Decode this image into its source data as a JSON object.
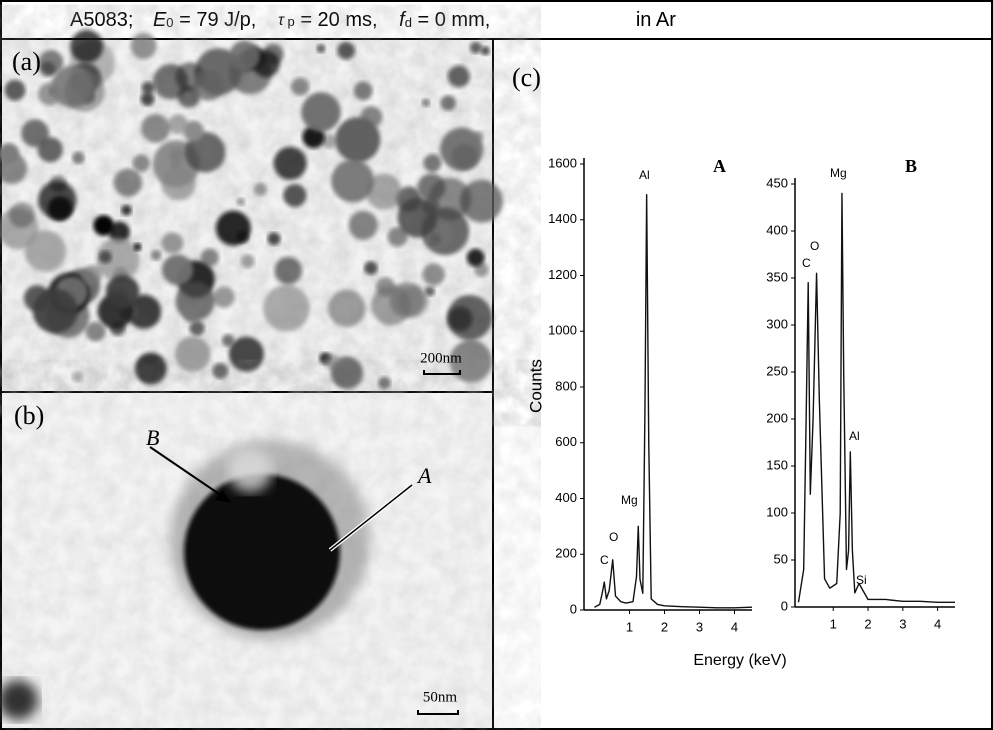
{
  "header": {
    "parts": [
      "A5083;",
      "E",
      "0",
      " = 79 J/p,",
      "τ",
      " p",
      " = 20 ms,",
      "f",
      "d",
      " = 0 mm,",
      "in Ar"
    ]
  },
  "panel_a": {
    "label": "(a)",
    "scale_bar": "200nm"
  },
  "panel_b": {
    "label": "(b)",
    "scale_bar": "50nm",
    "arrows": [
      "B",
      "A"
    ]
  },
  "panel_c": {
    "label": "(c)",
    "xlabel": "Energy (keV)",
    "peak_labels_a": [
      "C",
      "O",
      "Mg",
      "Al"
    ],
    "peak_labels_b": [
      "C",
      "O",
      "Mg",
      "Al",
      "Si"
    ]
  },
  "chart_data": [
    {
      "type": "line",
      "title": "A",
      "ylabel": "Counts",
      "color": "#111111",
      "x": [
        0,
        0.15,
        0.22,
        0.28,
        0.34,
        0.42,
        0.52,
        0.6,
        0.75,
        0.9,
        1.1,
        1.2,
        1.25,
        1.3,
        1.38,
        1.44,
        1.49,
        1.55,
        1.62,
        1.8,
        2.0,
        2.5,
        3.0,
        3.5,
        4.0,
        4.5
      ],
      "values": [
        10,
        20,
        60,
        100,
        40,
        70,
        180,
        50,
        30,
        25,
        30,
        120,
        300,
        110,
        60,
        700,
        1490,
        600,
        40,
        20,
        15,
        12,
        10,
        8,
        8,
        10
      ],
      "xlim": [
        -0.3,
        4.5
      ],
      "ylim": [
        0,
        1600
      ],
      "xticks": [
        1,
        2,
        3,
        4
      ],
      "yticks": [
        0,
        200,
        400,
        600,
        800,
        1000,
        1200,
        1400,
        1600
      ]
    },
    {
      "type": "line",
      "title": "B",
      "color": "#111111",
      "x": [
        0,
        0.15,
        0.22,
        0.28,
        0.34,
        0.42,
        0.52,
        0.6,
        0.75,
        0.9,
        1.1,
        1.2,
        1.25,
        1.3,
        1.38,
        1.44,
        1.49,
        1.55,
        1.62,
        1.74,
        2.0,
        2.5,
        3.0,
        3.5,
        4.0,
        4.5
      ],
      "values": [
        5,
        40,
        200,
        345,
        120,
        200,
        355,
        220,
        30,
        20,
        25,
        100,
        440,
        250,
        40,
        60,
        165,
        60,
        15,
        25,
        8,
        8,
        6,
        6,
        5,
        5
      ],
      "xlim": [
        -0.1,
        4.5
      ],
      "ylim": [
        0,
        450
      ],
      "xticks": [
        1,
        2,
        3,
        4
      ],
      "yticks": [
        0,
        50,
        100,
        150,
        200,
        250,
        300,
        350,
        400,
        450
      ]
    }
  ]
}
